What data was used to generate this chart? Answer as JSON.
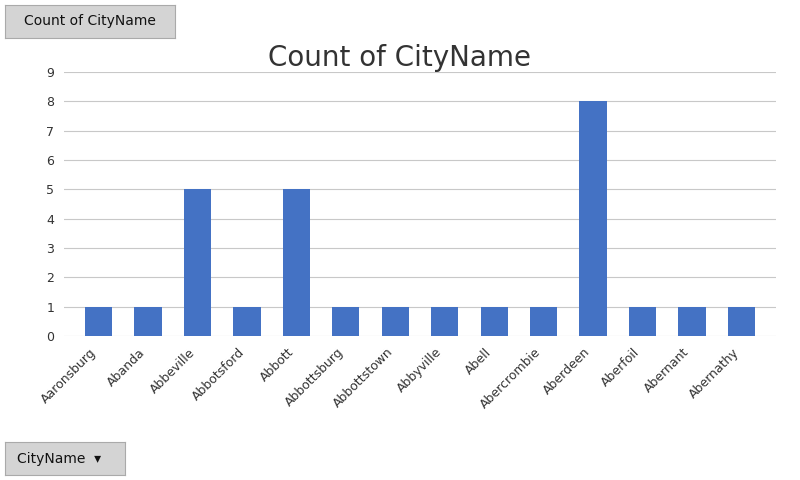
{
  "title": "Count of CityName",
  "categories": [
    "Aaronsburg",
    "Abanda",
    "Abbeville",
    "Abbotsford",
    "Abbott",
    "Abbottsburg",
    "Abbottstown",
    "Abbyville",
    "Abell",
    "Abercrombie",
    "Aberdeen",
    "Aberfoil",
    "Abernant",
    "Abernathy"
  ],
  "values": [
    1,
    1,
    5,
    1,
    5,
    1,
    1,
    1,
    1,
    1,
    8,
    1,
    1,
    1
  ],
  "bar_color": "#4472C4",
  "ylim": [
    0,
    9
  ],
  "yticks": [
    0,
    1,
    2,
    3,
    4,
    5,
    6,
    7,
    8,
    9
  ],
  "grid_color": "#C8C8C8",
  "bg_color": "#FFFFFF",
  "title_fontsize": 20,
  "tick_fontsize": 9,
  "header_label": "Count of CityName",
  "footer_label": "CityName",
  "header_bg": "#D4D4D4",
  "footer_bg": "#D4D4D4",
  "bar_width": 0.55
}
